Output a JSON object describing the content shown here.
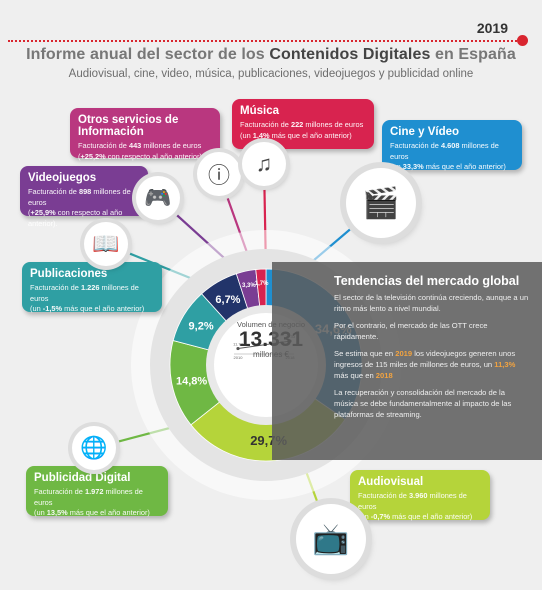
{
  "header": {
    "year": "2019",
    "title_pre": "Informe anual del sector de los ",
    "title_bold": "Contenidos Digitales",
    "title_post": " en España",
    "subtitle": "Audiovisual, cine, video, música, publicaciones, videojuegos y publicidad online"
  },
  "colors": {
    "red": "#d9252f",
    "music": "#d8234f",
    "other": "#b9377f",
    "games": "#7a3d93",
    "pubs": "#2f9fa3",
    "ads": "#6fb844",
    "av": "#b5d43a",
    "cine": "#1f8fd0",
    "navy": "#22346a"
  },
  "cards": {
    "otros": {
      "title": "Otros servicios de Información",
      "pre": "Facturación de ",
      "value": "443",
      "mid": " millones de euros",
      "change": "+25,2%",
      "post": " con respecto al año anterior)."
    },
    "musica": {
      "title": "Música",
      "pre": "Facturación de ",
      "value": "222",
      "mid": " millones de euros",
      "change": "1,4%",
      "post": " más que el año anterior)"
    },
    "cine": {
      "title": "Cine y Vídeo",
      "pre": "Facturación de ",
      "value": "4.608",
      "mid": " millones de euros",
      "change": "33,3%",
      "post": " más que el año anterior)"
    },
    "videojuegos": {
      "title": "Videojuegos",
      "pre": "Facturación de ",
      "value": "898",
      "mid": " millones de euros",
      "change": "+25,9%",
      "post": " con respecto al año anterior)."
    },
    "publicaciones": {
      "title": "Publicaciones",
      "pre": "Facturación de ",
      "value": "1.226",
      "mid": " millones de euros",
      "change": "-1,5%",
      "post": " más que el año anterior)"
    },
    "publicidad": {
      "title": "Publicidad Digital",
      "pre": "Facturación de ",
      "value": "1.972",
      "mid": " millones de euros",
      "change": "13,5%",
      "post": " más que el año anterior)"
    },
    "audiovisual": {
      "title": "Audiovisual",
      "pre": "Facturación de ",
      "value": "3.960",
      "mid": " millones de euros",
      "change": "-0,7%",
      "post": " más que el año anterior)"
    }
  },
  "trend": {
    "title": "Tendencias del mercado global",
    "p1": "El sector de la televisión continúa creciendo, aunque a un ritmo más lento a nivel mundial.",
    "p2": "Por el contrario, el mercado de las OTT crece rápidamente.",
    "p3_pre": "Se estima que en ",
    "p3_year": "2019",
    "p3_mid": " los videojuegos generen unos ingresos de 115 miles de millones de euros, un ",
    "p3_pct": "11,3%",
    "p3_mid2": " más que en ",
    "p3_year2": "2018",
    "p4": "La recuperación y consolidación del mercado de la música se debe fundamentalmente al impacto de las plataformas de streaming."
  },
  "center": {
    "label": "Volumen de negocio",
    "value": "13.331",
    "unit": "millones €"
  },
  "mini_trend": {
    "x": [
      "2010",
      "2018"
    ],
    "y": [
      11.74,
      13.33
    ],
    "start_label": "11.74",
    "end_label": "13.33"
  },
  "chart_data": {
    "type": "pie",
    "title": "Volumen de negocio",
    "categories": [
      "Cine y Vídeo",
      "Audiovisual",
      "Publicidad Digital",
      "Publicaciones",
      "Videojuegos",
      "Otros servicios de Información",
      "Música"
    ],
    "values": [
      34.6,
      29.7,
      14.8,
      9.2,
      6.7,
      3.3,
      1.7
    ],
    "labels": [
      "34,6%",
      "29,7%",
      "14,8%",
      "9,2%",
      "6,7%",
      "3,3%",
      "1,7%"
    ],
    "colors": [
      "#1f8fd0",
      "#b5d43a",
      "#6fb844",
      "#2f9fa3",
      "#22346a",
      "#7a3d93",
      "#d8234f"
    ],
    "legend": "none"
  }
}
